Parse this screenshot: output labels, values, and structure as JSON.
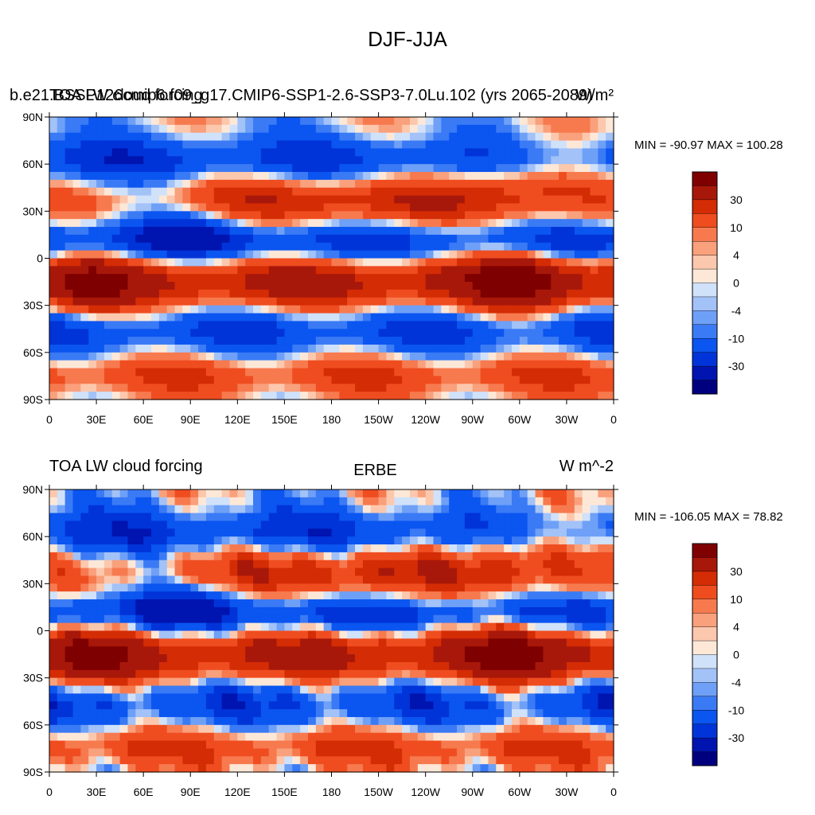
{
  "title": "DJF-JJA",
  "colors": [
    "#00007f",
    "#0014b0",
    "#0034d8",
    "#0b55f0",
    "#3a7af5",
    "#6ea0f7",
    "#a2c2f8",
    "#d0e1fa",
    "#fde8d8",
    "#fcc8ad",
    "#f9a07c",
    "#f77a4f",
    "#ef4d20",
    "#d42c05",
    "#a8180a",
    "#7f0000"
  ],
  "colorbar_labels": [
    "-30",
    "-10",
    "-4",
    "0",
    "4",
    "10",
    "30"
  ],
  "chart_data": [
    {
      "type": "heatmap",
      "left_title": "b.e21.BSSP126cmip6.f09_g17.CMIP6-SSP1-2.6-SSP3-7.0Lu.102 (yrs 2065-2089)",
      "overlay_title": "TOA LW cloud forcing",
      "center_title": "",
      "right_title": "W/m²",
      "min_max_text": "MIN = -90.97 MAX = 100.28",
      "min": -90.97,
      "max": 100.28,
      "units": "W/m²",
      "y_ticks": [
        "90N",
        "60N",
        "30N",
        "0",
        "30S",
        "60S",
        "90S"
      ],
      "x_ticks": [
        "0",
        "30E",
        "60E",
        "90E",
        "120E",
        "150E",
        "180",
        "150W",
        "120W",
        "90W",
        "60W",
        "30W",
        "0"
      ]
    },
    {
      "type": "heatmap",
      "left_title": "TOA LW cloud forcing",
      "center_title": "ERBE",
      "right_title": "W m^-2",
      "min_max_text": "MIN = -106.05 MAX =  78.82",
      "min": -106.05,
      "max": 78.82,
      "units": "W m^-2",
      "y_ticks": [
        "90N",
        "60N",
        "30N",
        "0",
        "30S",
        "60S",
        "90S"
      ],
      "x_ticks": [
        "0",
        "30E",
        "60E",
        "90E",
        "120E",
        "150E",
        "180",
        "150W",
        "120W",
        "90W",
        "60W",
        "30W",
        "0"
      ]
    }
  ]
}
